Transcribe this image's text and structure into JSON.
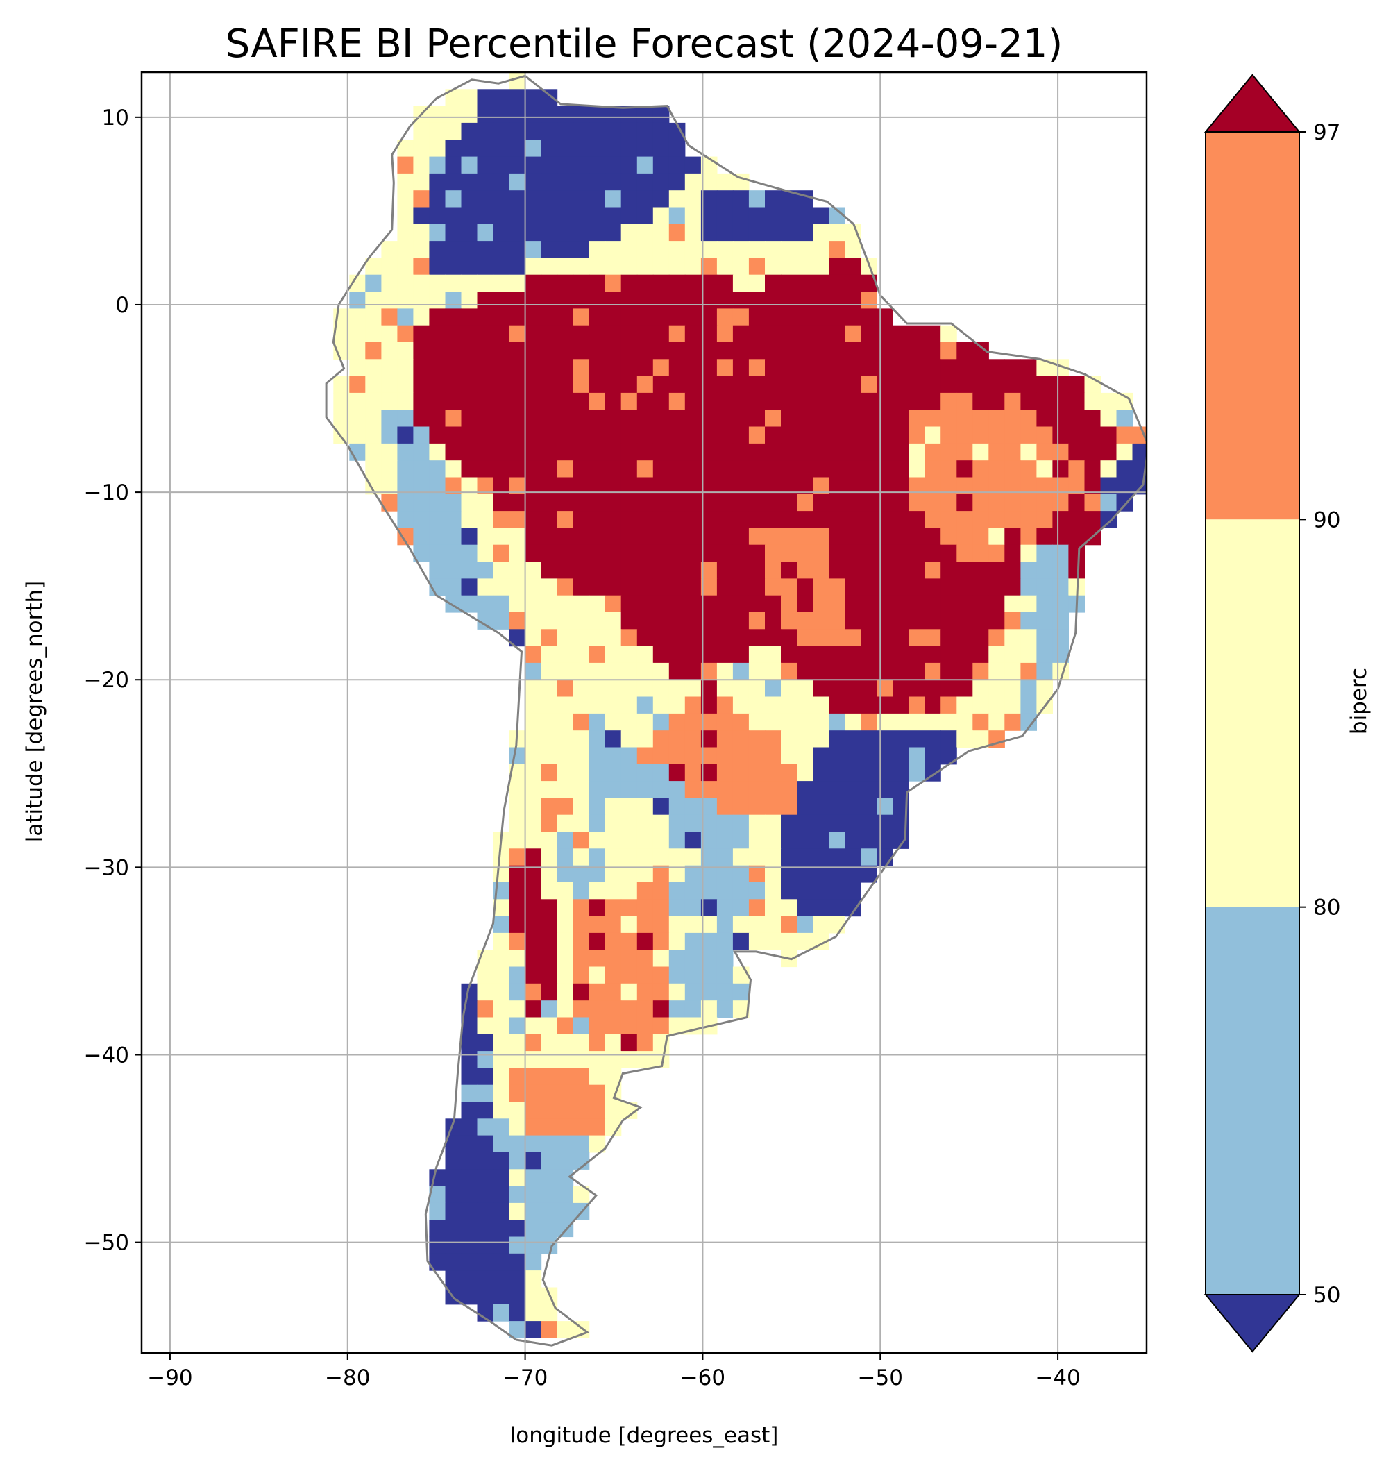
{
  "title": "SAFIRE BI Percentile Forecast (2024-09-21)",
  "map": {
    "xlabel": "longitude [degrees_east]",
    "ylabel": "latitude [degrees_north]",
    "x_ticks": [
      {
        "value": -90,
        "label": "−90"
      },
      {
        "value": -80,
        "label": "−80"
      },
      {
        "value": -70,
        "label": "−70"
      },
      {
        "value": -60,
        "label": "−60"
      },
      {
        "value": -50,
        "label": "−50"
      },
      {
        "value": -40,
        "label": "−40"
      }
    ],
    "y_ticks": [
      {
        "value": 10,
        "label": "10"
      },
      {
        "value": 0,
        "label": "0"
      },
      {
        "value": -10,
        "label": "−10"
      },
      {
        "value": -20,
        "label": "−20"
      },
      {
        "value": -30,
        "label": "−30"
      },
      {
        "value": -40,
        "label": "−40"
      },
      {
        "value": -50,
        "label": "−50"
      }
    ],
    "xlim": [
      -91.6,
      -35.0
    ],
    "ylim": [
      -55.9,
      12.4
    ],
    "grid": true,
    "region": "South America",
    "border_color": "#808080"
  },
  "colorbar": {
    "label": "biperc",
    "extend": "both",
    "tick_labels": [
      "50",
      "80",
      "90",
      "97"
    ],
    "classes": [
      {
        "range": "below 50",
        "color": "#313695"
      },
      {
        "range": "50–80",
        "color": "#91bfdb"
      },
      {
        "range": "80–90",
        "color": "#ffffbf"
      },
      {
        "range": "90–97",
        "color": "#fc8d59"
      },
      {
        "range": "above 97",
        "color": "#a50026"
      }
    ]
  }
}
